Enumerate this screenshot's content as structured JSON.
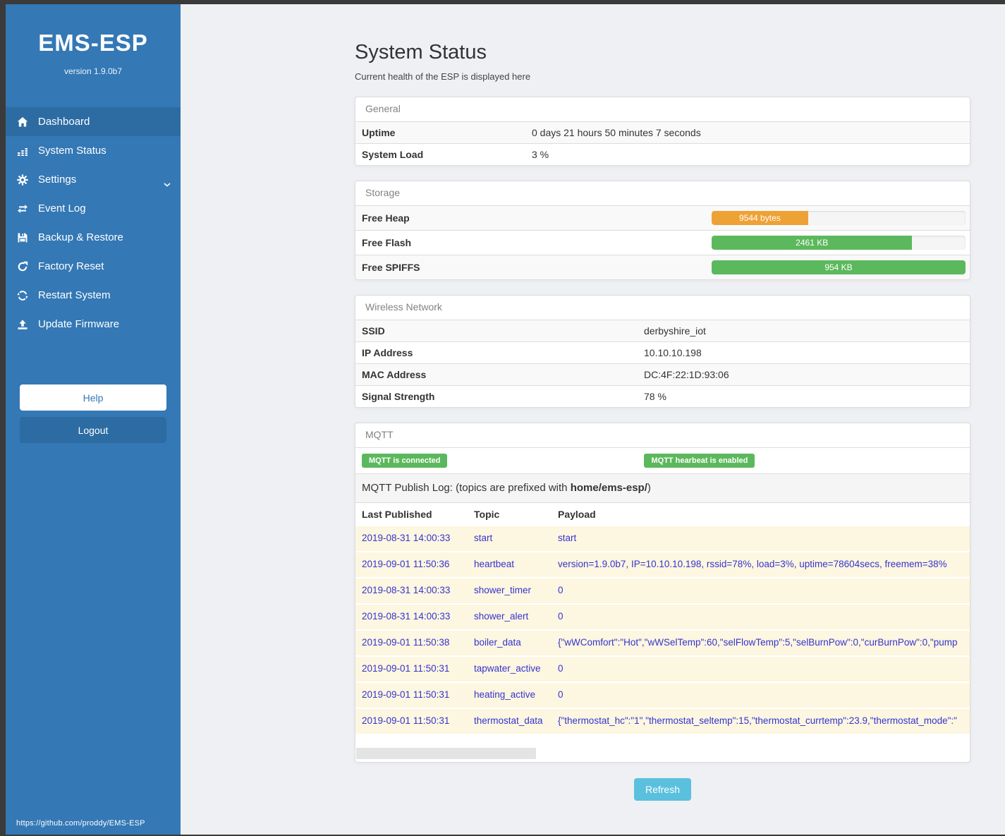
{
  "sidebar": {
    "title": "EMS-ESP",
    "version": "version 1.9.0b7",
    "items": [
      {
        "label": "Dashboard",
        "icon": "home-icon",
        "active": true
      },
      {
        "label": "System Status",
        "icon": "status-icon",
        "active": false
      },
      {
        "label": "Settings",
        "icon": "gear-icon",
        "active": false,
        "has_chevron": true
      },
      {
        "label": "Event Log",
        "icon": "exchange-icon",
        "active": false
      },
      {
        "label": "Backup & Restore",
        "icon": "save-icon",
        "active": false
      },
      {
        "label": "Factory Reset",
        "icon": "redo-icon",
        "active": false
      },
      {
        "label": "Restart System",
        "icon": "sync-icon",
        "active": false
      },
      {
        "label": "Update Firmware",
        "icon": "upload-icon",
        "active": false
      }
    ],
    "help_label": "Help",
    "logout_label": "Logout",
    "footer_link": "https://github.com/proddy/EMS-ESP"
  },
  "page": {
    "title": "System Status",
    "subtitle": "Current health of the ESP is displayed here",
    "refresh_label": "Refresh"
  },
  "general": {
    "heading": "General",
    "rows": [
      {
        "label": "Uptime",
        "value": "0 days 21 hours 50 minutes 7 seconds"
      },
      {
        "label": "System Load",
        "value": "3 %"
      }
    ]
  },
  "storage": {
    "heading": "Storage",
    "rows": [
      {
        "label": "Free Heap",
        "value": "9544 bytes",
        "percent": 38,
        "color": "#eea236"
      },
      {
        "label": "Free Flash",
        "value": "2461 KB",
        "percent": 79,
        "color": "#5cb85c"
      },
      {
        "label": "Free SPIFFS",
        "value": "954 KB",
        "percent": 100,
        "color": "#5cb85c"
      }
    ]
  },
  "wireless": {
    "heading": "Wireless Network",
    "rows": [
      {
        "label": "SSID",
        "value": "derbyshire_iot"
      },
      {
        "label": "IP Address",
        "value": "10.10.10.198"
      },
      {
        "label": "MAC Address",
        "value": "DC:4F:22:1D:93:06"
      },
      {
        "label": "Signal Strength",
        "value": "78 %"
      }
    ]
  },
  "mqtt": {
    "heading": "MQTT",
    "badges": [
      "MQTT is connected",
      "MQTT hearbeat is enabled"
    ],
    "publish_log": {
      "prefix": "MQTT Publish Log: (topics are prefixed with ",
      "bold": "home/ems-esp/",
      "suffix": ")"
    },
    "table": {
      "headers": [
        "Last Published",
        "Topic",
        "Payload"
      ],
      "rows": [
        [
          "2019-08-31 14:00:33",
          "start",
          "start"
        ],
        [
          "2019-09-01 11:50:36",
          "heartbeat",
          "version=1.9.0b7, IP=10.10.10.198, rssid=78%, load=3%, uptime=78604secs, freemem=38%"
        ],
        [
          "2019-08-31 14:00:33",
          "shower_timer",
          "0"
        ],
        [
          "2019-08-31 14:00:33",
          "shower_alert",
          "0"
        ],
        [
          "2019-09-01 11:50:38",
          "boiler_data",
          "{\"wWComfort\":\"Hot\",\"wWSelTemp\":60,\"selFlowTemp\":5,\"selBurnPow\":0,\"curBurnPow\":0,\"pump"
        ],
        [
          "2019-09-01 11:50:31",
          "tapwater_active",
          "0"
        ],
        [
          "2019-09-01 11:50:31",
          "heating_active",
          "0"
        ],
        [
          "2019-09-01 11:50:31",
          "thermostat_data",
          "{\"thermostat_hc\":\"1\",\"thermostat_seltemp\":15,\"thermostat_currtemp\":23.9,\"thermostat_mode\":\""
        ]
      ]
    }
  },
  "colors": {
    "sidebar_blue": "#3478b5",
    "sidebar_active_blue": "#2d6ca3",
    "success_green": "#5cb85c",
    "warning_orange": "#eea236",
    "info_blue": "#5bc0de",
    "log_row_bg": "#fdf6e0",
    "log_text_blue": "#3434d0",
    "main_bg": "#eef0f4"
  }
}
